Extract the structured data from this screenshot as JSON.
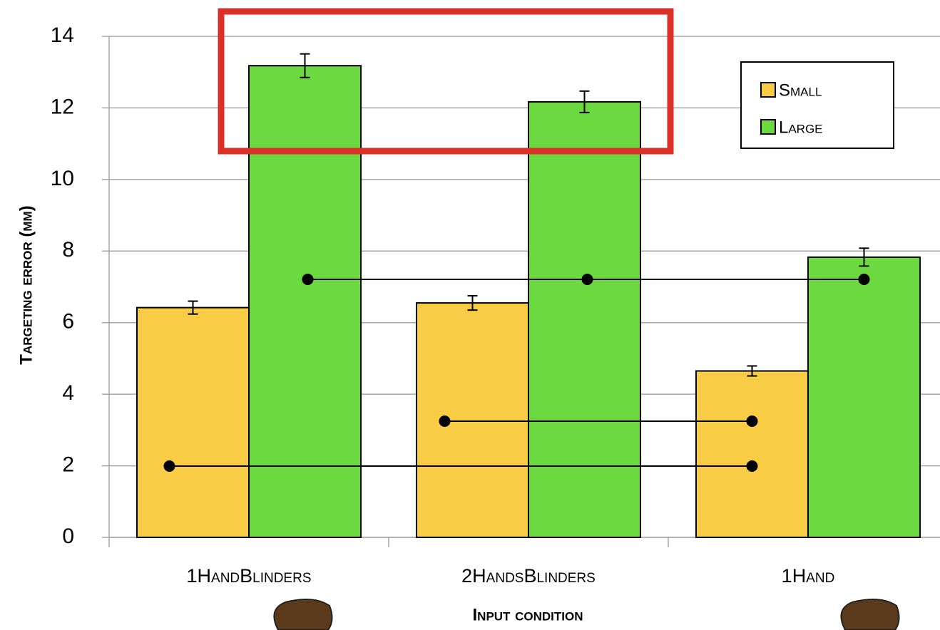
{
  "chart_data": {
    "type": "bar",
    "x_label": "Input condition",
    "y_label": "Targeting error (mm)",
    "categories": [
      "1HandBlinders",
      "2HandsBlinders",
      "1Hand"
    ],
    "series": [
      {
        "name": "Small",
        "color": "#f8cc44",
        "values": [
          6.42,
          6.55,
          4.65
        ],
        "errors": [
          0.18,
          0.2,
          0.14
        ]
      },
      {
        "name": "Large",
        "color": "#6cd941",
        "values": [
          13.18,
          12.17,
          7.83
        ],
        "errors": [
          0.33,
          0.3,
          0.25
        ]
      }
    ],
    "ylim": [
      0,
      14
    ],
    "yticks": [
      0,
      2,
      4,
      6,
      8,
      10,
      12,
      14
    ],
    "grid": true,
    "legend": "upper right"
  }
}
